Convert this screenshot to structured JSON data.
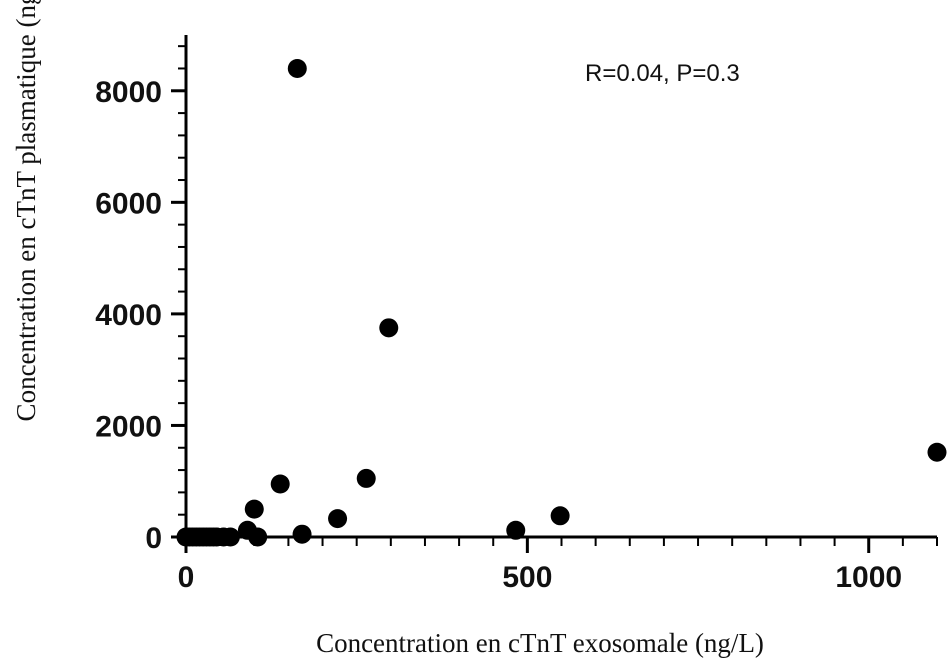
{
  "chart_data": {
    "type": "scatter",
    "xlabel": "Concentration en cTnT exosomale (ng/L)",
    "ylabel": "Concentration en cTnT plasmatique (ng/L)",
    "annotation": "R=0.04, P=0.3",
    "xlim": [
      0,
      1100
    ],
    "ylim": [
      0,
      9000
    ],
    "x_ticks": [
      0,
      500,
      1000
    ],
    "y_ticks": [
      0,
      2000,
      4000,
      6000,
      8000
    ],
    "x_tick_labels": [
      "0",
      "500",
      "1000"
    ],
    "y_tick_labels": [
      "0",
      "2000",
      "4000",
      "6000",
      "8000"
    ],
    "x_minor_step": 50,
    "y_minor_step": 400,
    "grid": false,
    "legend": "none",
    "marker_color": "#000000",
    "points": [
      {
        "x": 0,
        "y": 0
      },
      {
        "x": 5,
        "y": 0
      },
      {
        "x": 10,
        "y": 0
      },
      {
        "x": 15,
        "y": 0
      },
      {
        "x": 20,
        "y": 0
      },
      {
        "x": 25,
        "y": 0
      },
      {
        "x": 30,
        "y": 0
      },
      {
        "x": 35,
        "y": 0
      },
      {
        "x": 40,
        "y": 0
      },
      {
        "x": 45,
        "y": 0
      },
      {
        "x": 55,
        "y": 0
      },
      {
        "x": 65,
        "y": 0
      },
      {
        "x": 90,
        "y": 120
      },
      {
        "x": 100,
        "y": 500
      },
      {
        "x": 105,
        "y": 0
      },
      {
        "x": 138,
        "y": 950
      },
      {
        "x": 163,
        "y": 8400
      },
      {
        "x": 170,
        "y": 50
      },
      {
        "x": 222,
        "y": 330
      },
      {
        "x": 264,
        "y": 1050
      },
      {
        "x": 297,
        "y": 3750
      },
      {
        "x": 483,
        "y": 120
      },
      {
        "x": 548,
        "y": 380
      },
      {
        "x": 1100,
        "y": 1520
      }
    ]
  }
}
